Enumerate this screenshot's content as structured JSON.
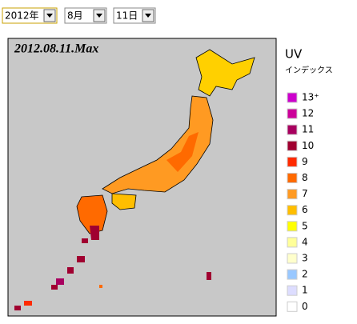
{
  "selects": [
    {
      "value": "2012年"
    },
    {
      "value": "8月"
    },
    {
      "value": "11日"
    }
  ],
  "map": {
    "title": "2012.08.11.Max"
  },
  "legend": {
    "title": "UV",
    "subtitle": "インデックス",
    "items": [
      {
        "label": "13⁺",
        "color": "#cc00cc"
      },
      {
        "label": "12",
        "color": "#cc0099"
      },
      {
        "label": "11",
        "color": "#a8005f"
      },
      {
        "label": "10",
        "color": "#a00030"
      },
      {
        "label": "9",
        "color": "#ff2a00"
      },
      {
        "label": "8",
        "color": "#ff6a00"
      },
      {
        "label": "7",
        "color": "#ff9a22"
      },
      {
        "label": "6",
        "color": "#ffbe00"
      },
      {
        "label": "5",
        "color": "#ffff00"
      },
      {
        "label": "4",
        "color": "#ffff99"
      },
      {
        "label": "3",
        "color": "#ffffcc"
      },
      {
        "label": "2",
        "color": "#99c8ff"
      },
      {
        "label": "1",
        "color": "#ddddff"
      },
      {
        "label": "0",
        "color": "#ffffff"
      }
    ]
  }
}
